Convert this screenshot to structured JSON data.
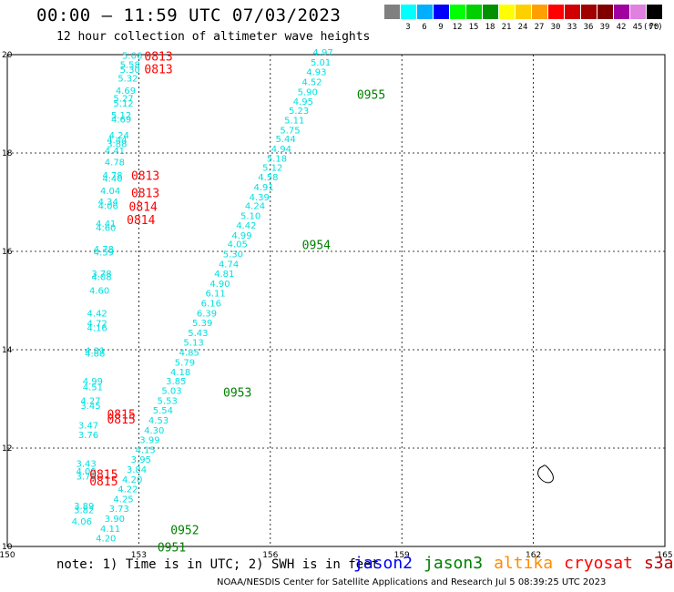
{
  "header": {
    "title": "00:00 — 11:59 UTC 07/03/2023",
    "subtitle": "12 hour collection of altimeter wave heights",
    "unit_label": "(ft)"
  },
  "legend": {
    "swatches": [
      {
        "label": "",
        "color": "#808080"
      },
      {
        "label": "3",
        "color": "#00ffff"
      },
      {
        "label": "6",
        "color": "#00b0ff"
      },
      {
        "label": "9",
        "color": "#0000ff"
      },
      {
        "label": "12",
        "color": "#00ff00"
      },
      {
        "label": "15",
        "color": "#00d000"
      },
      {
        "label": "18",
        "color": "#009000"
      },
      {
        "label": "21",
        "color": "#ffff00"
      },
      {
        "label": "24",
        "color": "#ffd000"
      },
      {
        "label": "27",
        "color": "#ffa000"
      },
      {
        "label": "30",
        "color": "#ff0000"
      },
      {
        "label": "33",
        "color": "#d00000"
      },
      {
        "label": "36",
        "color": "#a00000"
      },
      {
        "label": "39",
        "color": "#800000"
      },
      {
        "label": "42",
        "color": "#a000a0"
      },
      {
        "label": "45",
        "color": "#e080e0"
      },
      {
        "label": "70",
        "color": "#000000"
      }
    ]
  },
  "footer": {
    "note": "note: 1) Time is in UTC; 2) SWH is in feet",
    "satellites": [
      {
        "name": "jason2",
        "color": "#0000ff"
      },
      {
        "name": "jason3",
        "color": "#008000"
      },
      {
        "name": "altika",
        "color": "#ff8c00"
      },
      {
        "name": "cryosat",
        "color": "#ff0000"
      },
      {
        "name": "s3a",
        "color": "#c00000"
      }
    ],
    "credit": "NOAA/NESDIS Center for Satellite Applications and Research   Jul  5 08:39:25 UTC 2023"
  },
  "chart_data": {
    "type": "scatter",
    "x_ticks": [
      "150",
      "153",
      "156",
      "159",
      "162",
      "165"
    ],
    "y_ticks": [
      "10",
      "12",
      "14",
      "16",
      "18",
      "20"
    ],
    "xlim": [
      150,
      165
    ],
    "ylim": [
      10,
      20
    ],
    "grid": true,
    "swh_color": "#00e0e0",
    "swh_points": [
      {
        "lon": 152.85,
        "lat": 19.92,
        "v": "5.06"
      },
      {
        "lon": 152.8,
        "lat": 19.73,
        "v": "5.58"
      },
      {
        "lon": 152.8,
        "lat": 19.63,
        "v": "5.30"
      },
      {
        "lon": 152.75,
        "lat": 19.45,
        "v": "5.32"
      },
      {
        "lon": 152.7,
        "lat": 19.2,
        "v": "4.69"
      },
      {
        "lon": 152.65,
        "lat": 19.05,
        "v": "5.27"
      },
      {
        "lon": 152.65,
        "lat": 18.94,
        "v": "5.12"
      },
      {
        "lon": 152.6,
        "lat": 18.7,
        "v": "5.12"
      },
      {
        "lon": 152.6,
        "lat": 18.62,
        "v": "4.69"
      },
      {
        "lon": 152.55,
        "lat": 18.3,
        "v": "4.24"
      },
      {
        "lon": 152.5,
        "lat": 18.2,
        "v": "4.44"
      },
      {
        "lon": 152.5,
        "lat": 18.12,
        "v": "3.88"
      },
      {
        "lon": 152.45,
        "lat": 17.98,
        "v": "4.41"
      },
      {
        "lon": 152.45,
        "lat": 17.75,
        "v": "4.78"
      },
      {
        "lon": 152.4,
        "lat": 17.48,
        "v": "4.78"
      },
      {
        "lon": 152.4,
        "lat": 17.42,
        "v": "4.40"
      },
      {
        "lon": 152.35,
        "lat": 17.17,
        "v": "4.04"
      },
      {
        "lon": 152.3,
        "lat": 16.94,
        "v": "4.34"
      },
      {
        "lon": 152.3,
        "lat": 16.86,
        "v": "4.06"
      },
      {
        "lon": 152.25,
        "lat": 16.5,
        "v": "4.41"
      },
      {
        "lon": 152.25,
        "lat": 16.42,
        "v": "4.60"
      },
      {
        "lon": 152.2,
        "lat": 15.98,
        "v": "4.78"
      },
      {
        "lon": 152.2,
        "lat": 15.92,
        "v": "4.59"
      },
      {
        "lon": 152.15,
        "lat": 15.48,
        "v": "3.78"
      },
      {
        "lon": 152.15,
        "lat": 15.42,
        "v": "4.08"
      },
      {
        "lon": 152.1,
        "lat": 15.14,
        "v": "4.60"
      },
      {
        "lon": 152.05,
        "lat": 14.68,
        "v": "4.42"
      },
      {
        "lon": 152.05,
        "lat": 14.47,
        "v": "4.72"
      },
      {
        "lon": 152.05,
        "lat": 14.38,
        "v": "4.16"
      },
      {
        "lon": 152.0,
        "lat": 13.92,
        "v": "4.31"
      },
      {
        "lon": 152.0,
        "lat": 13.86,
        "v": "4.88"
      },
      {
        "lon": 151.95,
        "lat": 13.3,
        "v": "4.99"
      },
      {
        "lon": 151.95,
        "lat": 13.18,
        "v": "4.51"
      },
      {
        "lon": 151.9,
        "lat": 12.9,
        "v": "4.27"
      },
      {
        "lon": 151.9,
        "lat": 12.8,
        "v": "3.45"
      },
      {
        "lon": 151.85,
        "lat": 12.4,
        "v": "3.47"
      },
      {
        "lon": 151.85,
        "lat": 12.2,
        "v": "3.76"
      },
      {
        "lon": 151.8,
        "lat": 11.62,
        "v": "3.43"
      },
      {
        "lon": 151.8,
        "lat": 11.46,
        "v": "4.09"
      },
      {
        "lon": 151.8,
        "lat": 11.36,
        "v": "3.78"
      },
      {
        "lon": 151.75,
        "lat": 10.76,
        "v": "3.89"
      },
      {
        "lon": 151.75,
        "lat": 10.68,
        "v": "3.82"
      },
      {
        "lon": 151.7,
        "lat": 10.44,
        "v": "4.06"
      },
      {
        "lon": 157.2,
        "lat": 19.98,
        "v": "4.97"
      },
      {
        "lon": 157.15,
        "lat": 19.78,
        "v": "5.01"
      },
      {
        "lon": 157.05,
        "lat": 19.58,
        "v": "4.93"
      },
      {
        "lon": 156.95,
        "lat": 19.38,
        "v": "4.52"
      },
      {
        "lon": 156.85,
        "lat": 19.18,
        "v": "5.90"
      },
      {
        "lon": 156.75,
        "lat": 18.98,
        "v": "4.95"
      },
      {
        "lon": 156.65,
        "lat": 18.8,
        "v": "5.23"
      },
      {
        "lon": 156.55,
        "lat": 18.6,
        "v": "5.11"
      },
      {
        "lon": 156.45,
        "lat": 18.4,
        "v": "5.75"
      },
      {
        "lon": 156.35,
        "lat": 18.22,
        "v": "5.44"
      },
      {
        "lon": 156.25,
        "lat": 18.02,
        "v": "4.94"
      },
      {
        "lon": 156.15,
        "lat": 17.82,
        "v": "5.18"
      },
      {
        "lon": 156.05,
        "lat": 17.64,
        "v": "5.12"
      },
      {
        "lon": 155.95,
        "lat": 17.44,
        "v": "4.58"
      },
      {
        "lon": 155.85,
        "lat": 17.24,
        "v": "4.91"
      },
      {
        "lon": 155.75,
        "lat": 17.04,
        "v": "4.39"
      },
      {
        "lon": 155.65,
        "lat": 16.86,
        "v": "4.24"
      },
      {
        "lon": 155.55,
        "lat": 16.66,
        "v": "5.10"
      },
      {
        "lon": 155.45,
        "lat": 16.46,
        "v": "4.42"
      },
      {
        "lon": 155.35,
        "lat": 16.26,
        "v": "4.99"
      },
      {
        "lon": 155.25,
        "lat": 16.08,
        "v": "4.05"
      },
      {
        "lon": 155.15,
        "lat": 15.88,
        "v": "5.30"
      },
      {
        "lon": 155.05,
        "lat": 15.68,
        "v": "4.74"
      },
      {
        "lon": 154.95,
        "lat": 15.48,
        "v": "4.81"
      },
      {
        "lon": 154.85,
        "lat": 15.28,
        "v": "4.90"
      },
      {
        "lon": 154.75,
        "lat": 15.08,
        "v": "6.11"
      },
      {
        "lon": 154.65,
        "lat": 14.88,
        "v": "6.16"
      },
      {
        "lon": 154.55,
        "lat": 14.68,
        "v": "6.39"
      },
      {
        "lon": 154.45,
        "lat": 14.48,
        "v": "5.39"
      },
      {
        "lon": 154.35,
        "lat": 14.28,
        "v": "5.43"
      },
      {
        "lon": 154.25,
        "lat": 14.08,
        "v": "5.13"
      },
      {
        "lon": 154.15,
        "lat": 13.88,
        "v": "4.85"
      },
      {
        "lon": 154.05,
        "lat": 13.68,
        "v": "5.79"
      },
      {
        "lon": 153.95,
        "lat": 13.48,
        "v": "4.18"
      },
      {
        "lon": 153.85,
        "lat": 13.3,
        "v": "3.85"
      },
      {
        "lon": 153.75,
        "lat": 13.1,
        "v": "5.03"
      },
      {
        "lon": 153.65,
        "lat": 12.9,
        "v": "5.53"
      },
      {
        "lon": 153.55,
        "lat": 12.7,
        "v": "5.54"
      },
      {
        "lon": 153.45,
        "lat": 12.5,
        "v": "4.53"
      },
      {
        "lon": 153.35,
        "lat": 12.3,
        "v": "4.30"
      },
      {
        "lon": 153.25,
        "lat": 12.1,
        "v": "3.99"
      },
      {
        "lon": 153.15,
        "lat": 11.9,
        "v": "4.15"
      },
      {
        "lon": 153.05,
        "lat": 11.7,
        "v": "3.95"
      },
      {
        "lon": 152.95,
        "lat": 11.5,
        "v": "3.84"
      },
      {
        "lon": 152.85,
        "lat": 11.3,
        "v": "4.20"
      },
      {
        "lon": 152.75,
        "lat": 11.1,
        "v": "4.22"
      },
      {
        "lon": 152.65,
        "lat": 10.9,
        "v": "4.25"
      },
      {
        "lon": 152.55,
        "lat": 10.7,
        "v": "3.73"
      },
      {
        "lon": 152.45,
        "lat": 10.5,
        "v": "3.90"
      },
      {
        "lon": 152.35,
        "lat": 10.3,
        "v": "4.11"
      },
      {
        "lon": 152.25,
        "lat": 10.1,
        "v": "4.20"
      }
    ],
    "time_labels": [
      {
        "lon": 153.45,
        "lat": 19.88,
        "t": "0813",
        "sat": "cryosat"
      },
      {
        "lon": 153.45,
        "lat": 19.62,
        "t": "0813",
        "sat": "cryosat"
      },
      {
        "lon": 153.15,
        "lat": 17.45,
        "t": "0813",
        "sat": "cryosat"
      },
      {
        "lon": 153.15,
        "lat": 17.1,
        "t": "0813",
        "sat": "cryosat"
      },
      {
        "lon": 153.1,
        "lat": 16.82,
        "t": "0814",
        "sat": "cryosat"
      },
      {
        "lon": 153.05,
        "lat": 16.56,
        "t": "0814",
        "sat": "cryosat"
      },
      {
        "lon": 152.6,
        "lat": 12.6,
        "t": "0815",
        "sat": "cryosat"
      },
      {
        "lon": 152.6,
        "lat": 12.5,
        "t": "0815",
        "sat": "cryosat"
      },
      {
        "lon": 152.2,
        "lat": 11.38,
        "t": "0815",
        "sat": "cryosat"
      },
      {
        "lon": 152.2,
        "lat": 11.24,
        "t": "0815",
        "sat": "cryosat"
      },
      {
        "lon": 158.3,
        "lat": 19.1,
        "t": "0955",
        "sat": "jason3"
      },
      {
        "lon": 157.05,
        "lat": 16.05,
        "t": "0954",
        "sat": "jason3"
      },
      {
        "lon": 155.25,
        "lat": 13.05,
        "t": "0953",
        "sat": "jason3"
      },
      {
        "lon": 154.05,
        "lat": 10.25,
        "t": "0952",
        "sat": "jason3"
      },
      {
        "lon": 153.75,
        "lat": 9.9,
        "t": "0951",
        "sat": "jason3"
      }
    ],
    "land": [
      {
        "name": "island"
      }
    ]
  }
}
